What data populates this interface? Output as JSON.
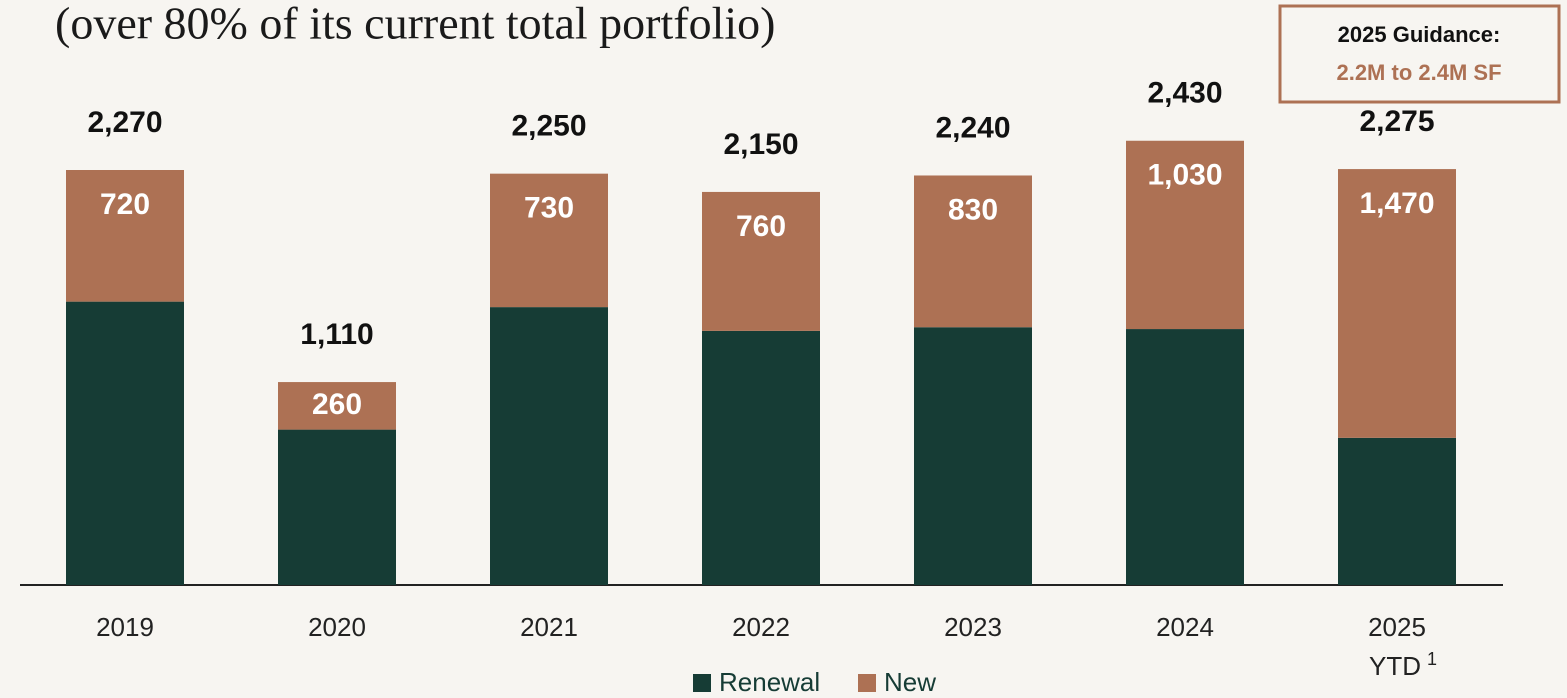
{
  "chart_data": {
    "type": "stacked-bar",
    "title": "(over 80% of its current total portfolio)",
    "guidance_title": "2025 Guidance:",
    "guidance_value": "2.2M to 2.4M SF",
    "categories": [
      "2019",
      "2020",
      "2021",
      "2022",
      "2023",
      "2024",
      "2025"
    ],
    "ytd_label": "YTD",
    "footnote_marker": "1",
    "series": [
      {
        "name": "Renewal",
        "color": "#163c35",
        "values": [
          1550,
          850,
          1520,
          1390,
          1410,
          1400,
          805
        ]
      },
      {
        "name": "New",
        "color": "#ad7154",
        "values": [
          720,
          260,
          730,
          760,
          830,
          1030,
          1470
        ],
        "value_labels": [
          "720",
          "260",
          "730",
          "760",
          "830",
          "1,030",
          "1,470"
        ]
      }
    ],
    "totals": [
      2270,
      1110,
      2250,
      2150,
      2240,
      2430,
      2275
    ],
    "total_labels": [
      "2,270",
      "1,110",
      "2,250",
      "2,150",
      "2,240",
      "2,430",
      "2,275"
    ]
  }
}
